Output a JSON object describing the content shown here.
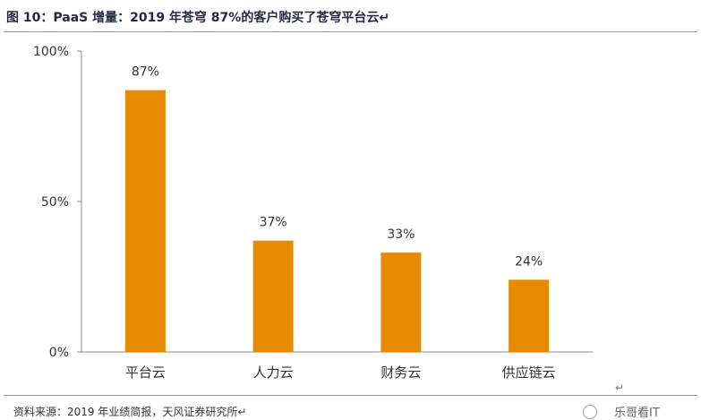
{
  "header": {
    "title": "图 10：PaaS 增量：2019 年苍穹 87%的客户购买了苍穹平台云↵"
  },
  "footer": {
    "source": "资料来源：2019 年业绩简报，天风证券研究所↵",
    "return_mark": "↵",
    "watermark": "乐哥看IT"
  },
  "colors": {
    "bar": "#e68a00",
    "axis": "#888888",
    "rule": "#b89a55"
  },
  "chart_data": {
    "type": "bar",
    "title": "",
    "xlabel": "",
    "ylabel": "",
    "categories": [
      "平台云",
      "人力云",
      "财务云",
      "供应链云"
    ],
    "values": [
      87,
      37,
      33,
      24
    ],
    "data_labels": [
      "87%",
      "37%",
      "33%",
      "24%"
    ],
    "ylim": [
      0,
      100
    ],
    "yticks": [
      0,
      50,
      100
    ],
    "ytick_labels": [
      "0%",
      "50%",
      "100%"
    ],
    "grid": false,
    "legend": "none"
  }
}
